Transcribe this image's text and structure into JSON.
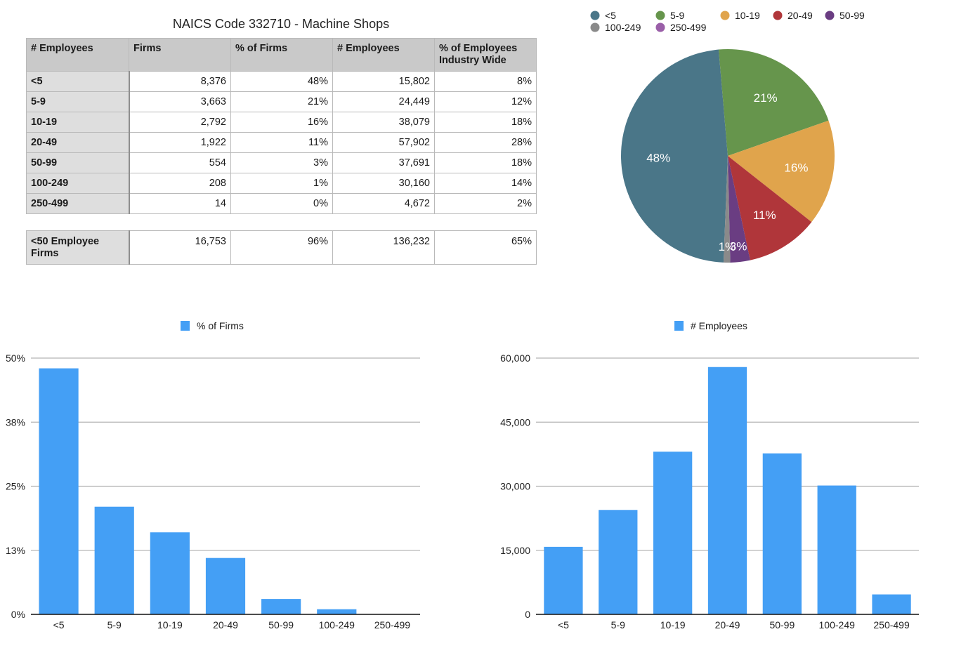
{
  "title": "NAICS Code 332710 - Machine Shops",
  "table": {
    "headers": [
      "# Employees",
      "Firms",
      "% of Firms",
      "# Employees",
      "% of Employees Industry Wide"
    ],
    "rows": [
      [
        "<5",
        "8,376",
        "48%",
        "15,802",
        "8%"
      ],
      [
        "5-9",
        "3,663",
        "21%",
        "24,449",
        "12%"
      ],
      [
        "10-19",
        "2,792",
        "16%",
        "38,079",
        "18%"
      ],
      [
        "20-49",
        "1,922",
        "11%",
        "57,902",
        "28%"
      ],
      [
        "50-99",
        "554",
        "3%",
        "37,691",
        "18%"
      ],
      [
        "100-249",
        "208",
        "1%",
        "30,160",
        "14%"
      ],
      [
        "250-499",
        "14",
        "0%",
        "4,672",
        "2%"
      ]
    ],
    "total": [
      "<50 Employee Firms",
      "16,753",
      "96%",
      "136,232",
      "65%"
    ]
  },
  "chart_data": [
    {
      "type": "pie",
      "title": "",
      "legend_position": "top",
      "categories": [
        "<5",
        "5-9",
        "10-19",
        "20-49",
        "50-99",
        "100-249",
        "250-499"
      ],
      "values": [
        48,
        21,
        16,
        11,
        3,
        1,
        0
      ],
      "labels": [
        "48%",
        "21%",
        "16%",
        "11%",
        "3%",
        "1%",
        ""
      ],
      "colors": [
        "#4a7688",
        "#66954c",
        "#e0a44c",
        "#b0363a",
        "#6a3d82",
        "#8a8a8a",
        "#9a5fa8"
      ]
    },
    {
      "type": "bar",
      "title": "",
      "legend": [
        "% of Firms"
      ],
      "legend_position": "top",
      "categories": [
        "<5",
        "5-9",
        "10-19",
        "20-49",
        "50-99",
        "100-249",
        "250-499"
      ],
      "values": [
        48,
        21,
        16,
        11,
        3,
        1,
        0
      ],
      "yticks": [
        "0%",
        "13%",
        "25%",
        "38%",
        "50%"
      ],
      "ylim": [
        0,
        50
      ],
      "xlabel": "",
      "ylabel": "",
      "grid": true,
      "color": "#449ff5"
    },
    {
      "type": "bar",
      "title": "",
      "legend": [
        "# Employees"
      ],
      "legend_position": "top",
      "categories": [
        "<5",
        "5-9",
        "10-19",
        "20-49",
        "50-99",
        "100-249",
        "250-499"
      ],
      "values": [
        15802,
        24449,
        38079,
        57902,
        37691,
        30160,
        4672
      ],
      "yticks": [
        "0",
        "15,000",
        "30,000",
        "45,000",
        "60,000"
      ],
      "ylim": [
        0,
        60000
      ],
      "xlabel": "",
      "ylabel": "",
      "grid": true,
      "color": "#449ff5"
    }
  ]
}
